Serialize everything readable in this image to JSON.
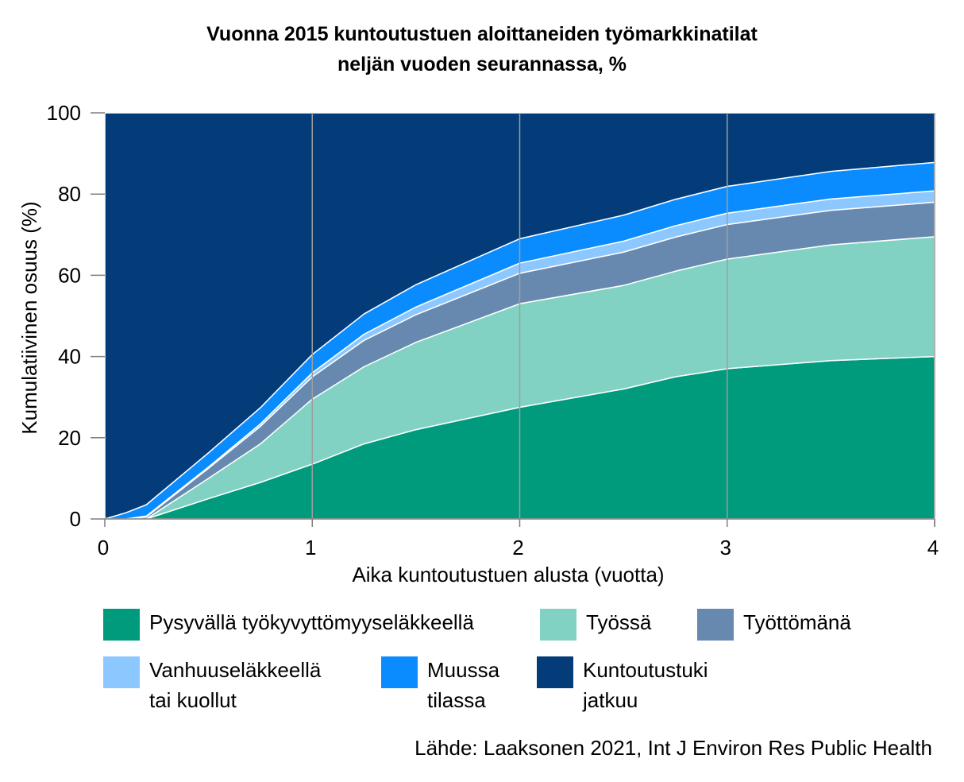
{
  "title_lines": [
    "Vuonna 2015 kuntoutustuen aloittaneiden työmarkkinatilat",
    "neljän vuoden seurannassa, %"
  ],
  "source": "Lähde: Laaksonen 2021, Int J Environ Res Public Health",
  "chart_data": {
    "type": "area",
    "stacked": true,
    "title": "Vuonna 2015 kuntoutustuen aloittaneiden työmarkkinatilat neljän vuoden seurannassa, %",
    "xlabel": "Aika kuntoutustuen alusta (vuotta)",
    "ylabel": "Kumulatiivinen osuus (%)",
    "xlim": [
      0,
      4
    ],
    "ylim": [
      0,
      100
    ],
    "xticks": [
      0,
      1,
      2,
      3,
      4
    ],
    "yticks": [
      0,
      20,
      40,
      60,
      80,
      100
    ],
    "grid": "vertical",
    "legend_position": "bottom",
    "x": [
      0,
      0.1,
      0.2,
      0.5,
      0.75,
      1.0,
      1.25,
      1.5,
      2.0,
      2.5,
      2.75,
      3.0,
      3.5,
      4.0
    ],
    "series": [
      {
        "name": "Pysyvällä työkyvyttömyyseläkkeellä",
        "color": "#009B7D",
        "values": [
          0,
          0,
          0,
          5,
          9,
          13.5,
          18.5,
          22,
          27.5,
          32,
          35,
          37,
          39,
          40
        ]
      },
      {
        "name": "Työssä",
        "color": "#82D2C3",
        "values": [
          0,
          0,
          0,
          5,
          9.5,
          16,
          19,
          21.5,
          25.5,
          25.5,
          26,
          27,
          28.5,
          29.5
        ]
      },
      {
        "name": "Työttömänä",
        "color": "#6889AF",
        "values": [
          0,
          0,
          0.5,
          2.5,
          4.3,
          5.5,
          6.5,
          6.8,
          7.5,
          8.2,
          8.4,
          8.5,
          8.5,
          8.5
        ]
      },
      {
        "name": "Vanhuuseläkkeellä tai kuollut",
        "color": "#8CC8FF",
        "values": [
          0,
          0,
          0.2,
          0.3,
          0.6,
          1.0,
          1.5,
          1.9,
          2.5,
          2.7,
          2.8,
          2.8,
          2.8,
          2.8
        ]
      },
      {
        "name": "Muussa tilassa",
        "color": "#0A8CFF",
        "values": [
          0,
          1.5,
          2.8,
          3.5,
          4.0,
          4.5,
          5.0,
          5.5,
          6.0,
          6.4,
          6.5,
          6.6,
          6.8,
          7.0
        ]
      },
      {
        "name": "Kuntoutustuki jatkuu",
        "color": "#033C78",
        "values": [
          100,
          98.5,
          96.5,
          83.7,
          72.6,
          59.5,
          49.5,
          42.3,
          31.0,
          25.2,
          21.3,
          18.1,
          14.4,
          12.2
        ]
      }
    ]
  },
  "legend_labels": [
    "Pysyvällä työkyvyttömyyseläkkeellä",
    "Työssä",
    "Työttömänä",
    "Vanhuuseläkkeellä\ntai kuollut",
    "Muussa\ntilassa",
    "Kuntoutustuki\njatkuu"
  ]
}
